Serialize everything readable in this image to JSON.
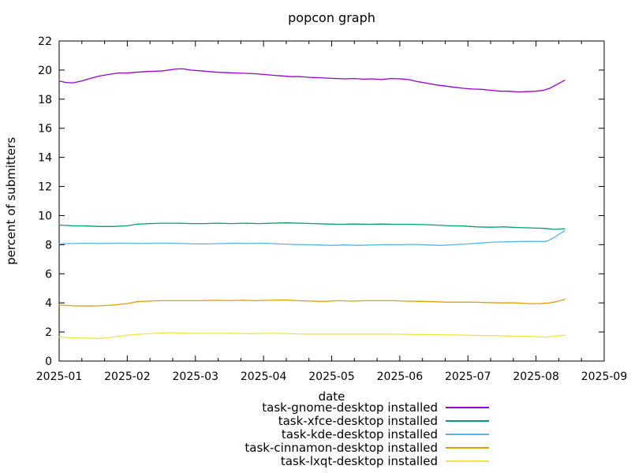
{
  "window": {
    "title": "popcon graph"
  },
  "chart_data": {
    "type": "line",
    "title": "popcon graph",
    "xlabel": "date",
    "ylabel": "percent of submitters",
    "x_tick_labels": [
      "2025-01",
      "2025-02",
      "2025-03",
      "2025-04",
      "2025-05",
      "2025-06",
      "2025-07",
      "2025-08",
      "2025-09"
    ],
    "x_range_months": [
      0,
      8
    ],
    "x_minor_ticks_per_month": 3,
    "ylim": [
      0,
      22
    ],
    "y_tick_step": 2,
    "grid": false,
    "legend_position": "below-plot-right",
    "axis_color": "#000000",
    "background_color": "#ffffff",
    "x_unit_note": "x values are months after 2025-01-01; data ends ~2025-08-13",
    "series": [
      {
        "id": "task-gnome-desktop",
        "name": "task-gnome-desktop installed",
        "color": "#9400d3",
        "points": [
          [
            0.0,
            19.25
          ],
          [
            0.1,
            19.15
          ],
          [
            0.2,
            19.12
          ],
          [
            0.33,
            19.25
          ],
          [
            0.47,
            19.45
          ],
          [
            0.6,
            19.6
          ],
          [
            0.73,
            19.7
          ],
          [
            0.87,
            19.8
          ],
          [
            1.0,
            19.8
          ],
          [
            1.13,
            19.85
          ],
          [
            1.27,
            19.9
          ],
          [
            1.4,
            19.92
          ],
          [
            1.53,
            19.95
          ],
          [
            1.67,
            20.05
          ],
          [
            1.8,
            20.1
          ],
          [
            1.93,
            20.0
          ],
          [
            2.07,
            19.95
          ],
          [
            2.2,
            19.9
          ],
          [
            2.33,
            19.85
          ],
          [
            2.47,
            19.82
          ],
          [
            2.6,
            19.8
          ],
          [
            2.73,
            19.78
          ],
          [
            2.87,
            19.75
          ],
          [
            3.0,
            19.7
          ],
          [
            3.13,
            19.65
          ],
          [
            3.27,
            19.6
          ],
          [
            3.4,
            19.55
          ],
          [
            3.53,
            19.55
          ],
          [
            3.67,
            19.5
          ],
          [
            3.8,
            19.48
          ],
          [
            3.93,
            19.45
          ],
          [
            4.07,
            19.42
          ],
          [
            4.2,
            19.4
          ],
          [
            4.33,
            19.42
          ],
          [
            4.47,
            19.38
          ],
          [
            4.6,
            19.4
          ],
          [
            4.73,
            19.35
          ],
          [
            4.87,
            19.42
          ],
          [
            5.0,
            19.4
          ],
          [
            5.13,
            19.35
          ],
          [
            5.27,
            19.2
          ],
          [
            5.4,
            19.1
          ],
          [
            5.53,
            18.98
          ],
          [
            5.67,
            18.9
          ],
          [
            5.8,
            18.82
          ],
          [
            5.93,
            18.75
          ],
          [
            6.07,
            18.7
          ],
          [
            6.2,
            18.68
          ],
          [
            6.33,
            18.62
          ],
          [
            6.47,
            18.55
          ],
          [
            6.6,
            18.55
          ],
          [
            6.73,
            18.5
          ],
          [
            6.87,
            18.52
          ],
          [
            7.0,
            18.55
          ],
          [
            7.1,
            18.6
          ],
          [
            7.2,
            18.75
          ],
          [
            7.3,
            19.0
          ],
          [
            7.42,
            19.3
          ]
        ]
      },
      {
        "id": "task-xfce-desktop",
        "name": "task-xfce-desktop installed",
        "color": "#009e73",
        "points": [
          [
            0.0,
            9.35
          ],
          [
            0.2,
            9.3
          ],
          [
            0.4,
            9.28
          ],
          [
            0.6,
            9.25
          ],
          [
            0.8,
            9.25
          ],
          [
            1.0,
            9.3
          ],
          [
            1.13,
            9.4
          ],
          [
            1.33,
            9.45
          ],
          [
            1.53,
            9.48
          ],
          [
            1.73,
            9.48
          ],
          [
            1.93,
            9.45
          ],
          [
            2.13,
            9.45
          ],
          [
            2.33,
            9.48
          ],
          [
            2.53,
            9.45
          ],
          [
            2.73,
            9.48
          ],
          [
            2.93,
            9.45
          ],
          [
            3.13,
            9.48
          ],
          [
            3.33,
            9.5
          ],
          [
            3.53,
            9.48
          ],
          [
            3.73,
            9.45
          ],
          [
            3.93,
            9.42
          ],
          [
            4.13,
            9.4
          ],
          [
            4.33,
            9.42
          ],
          [
            4.53,
            9.4
          ],
          [
            4.73,
            9.42
          ],
          [
            4.93,
            9.4
          ],
          [
            5.13,
            9.4
          ],
          [
            5.33,
            9.38
          ],
          [
            5.53,
            9.35
          ],
          [
            5.73,
            9.3
          ],
          [
            5.93,
            9.28
          ],
          [
            6.13,
            9.22
          ],
          [
            6.33,
            9.2
          ],
          [
            6.53,
            9.22
          ],
          [
            6.73,
            9.18
          ],
          [
            6.93,
            9.15
          ],
          [
            7.13,
            9.12
          ],
          [
            7.27,
            9.05
          ],
          [
            7.42,
            9.1
          ]
        ]
      },
      {
        "id": "task-kde-desktop",
        "name": "task-kde-desktop installed",
        "color": "#56b4e9",
        "points": [
          [
            0.0,
            8.05
          ],
          [
            0.2,
            8.08
          ],
          [
            0.4,
            8.1
          ],
          [
            0.6,
            8.08
          ],
          [
            0.8,
            8.1
          ],
          [
            1.0,
            8.1
          ],
          [
            1.2,
            8.08
          ],
          [
            1.4,
            8.1
          ],
          [
            1.6,
            8.1
          ],
          [
            1.8,
            8.08
          ],
          [
            2.0,
            8.05
          ],
          [
            2.2,
            8.05
          ],
          [
            2.4,
            8.08
          ],
          [
            2.6,
            8.1
          ],
          [
            2.8,
            8.08
          ],
          [
            3.0,
            8.1
          ],
          [
            3.2,
            8.05
          ],
          [
            3.4,
            8.02
          ],
          [
            3.6,
            8.0
          ],
          [
            3.8,
            7.98
          ],
          [
            4.0,
            7.95
          ],
          [
            4.2,
            7.98
          ],
          [
            4.4,
            7.95
          ],
          [
            4.6,
            7.98
          ],
          [
            4.8,
            8.0
          ],
          [
            5.0,
            8.0
          ],
          [
            5.2,
            8.02
          ],
          [
            5.4,
            7.98
          ],
          [
            5.6,
            7.95
          ],
          [
            5.8,
            8.0
          ],
          [
            6.0,
            8.05
          ],
          [
            6.2,
            8.12
          ],
          [
            6.4,
            8.18
          ],
          [
            6.6,
            8.2
          ],
          [
            6.8,
            8.22
          ],
          [
            7.0,
            8.22
          ],
          [
            7.15,
            8.22
          ],
          [
            7.25,
            8.45
          ],
          [
            7.35,
            8.75
          ],
          [
            7.42,
            8.95
          ]
        ]
      },
      {
        "id": "task-cinnamon-desktop",
        "name": "task-cinnamon-desktop installed",
        "color": "#e69f00",
        "points": [
          [
            0.0,
            3.85
          ],
          [
            0.2,
            3.8
          ],
          [
            0.4,
            3.78
          ],
          [
            0.6,
            3.8
          ],
          [
            0.8,
            3.85
          ],
          [
            1.0,
            3.95
          ],
          [
            1.15,
            4.08
          ],
          [
            1.3,
            4.12
          ],
          [
            1.5,
            4.15
          ],
          [
            1.7,
            4.15
          ],
          [
            1.9,
            4.15
          ],
          [
            2.1,
            4.15
          ],
          [
            2.3,
            4.18
          ],
          [
            2.5,
            4.15
          ],
          [
            2.7,
            4.18
          ],
          [
            2.9,
            4.15
          ],
          [
            3.1,
            4.18
          ],
          [
            3.3,
            4.2
          ],
          [
            3.5,
            4.15
          ],
          [
            3.7,
            4.12
          ],
          [
            3.9,
            4.1
          ],
          [
            4.1,
            4.15
          ],
          [
            4.3,
            4.12
          ],
          [
            4.5,
            4.15
          ],
          [
            4.7,
            4.15
          ],
          [
            4.9,
            4.15
          ],
          [
            5.1,
            4.12
          ],
          [
            5.3,
            4.1
          ],
          [
            5.5,
            4.08
          ],
          [
            5.7,
            4.05
          ],
          [
            5.9,
            4.05
          ],
          [
            6.1,
            4.05
          ],
          [
            6.3,
            4.02
          ],
          [
            6.5,
            4.0
          ],
          [
            6.7,
            4.0
          ],
          [
            6.9,
            3.95
          ],
          [
            7.05,
            3.95
          ],
          [
            7.2,
            4.0
          ],
          [
            7.32,
            4.1
          ],
          [
            7.42,
            4.25
          ]
        ]
      },
      {
        "id": "task-lxqt-desktop",
        "name": "task-lxqt-desktop installed",
        "color": "#f0e442",
        "points": [
          [
            0.0,
            1.65
          ],
          [
            0.2,
            1.6
          ],
          [
            0.4,
            1.58
          ],
          [
            0.6,
            1.55
          ],
          [
            0.8,
            1.65
          ],
          [
            1.0,
            1.78
          ],
          [
            1.2,
            1.85
          ],
          [
            1.4,
            1.9
          ],
          [
            1.6,
            1.95
          ],
          [
            1.8,
            1.92
          ],
          [
            2.0,
            1.9
          ],
          [
            2.2,
            1.9
          ],
          [
            2.4,
            1.9
          ],
          [
            2.6,
            1.9
          ],
          [
            2.8,
            1.88
          ],
          [
            3.0,
            1.9
          ],
          [
            3.2,
            1.9
          ],
          [
            3.4,
            1.88
          ],
          [
            3.6,
            1.85
          ],
          [
            3.8,
            1.85
          ],
          [
            4.0,
            1.85
          ],
          [
            4.2,
            1.85
          ],
          [
            4.4,
            1.85
          ],
          [
            4.6,
            1.85
          ],
          [
            4.8,
            1.85
          ],
          [
            5.0,
            1.85
          ],
          [
            5.2,
            1.82
          ],
          [
            5.4,
            1.82
          ],
          [
            5.6,
            1.8
          ],
          [
            5.8,
            1.8
          ],
          [
            6.0,
            1.78
          ],
          [
            6.2,
            1.75
          ],
          [
            6.4,
            1.75
          ],
          [
            6.6,
            1.72
          ],
          [
            6.8,
            1.7
          ],
          [
            7.0,
            1.68
          ],
          [
            7.15,
            1.65
          ],
          [
            7.3,
            1.72
          ],
          [
            7.42,
            1.78
          ]
        ]
      }
    ]
  }
}
